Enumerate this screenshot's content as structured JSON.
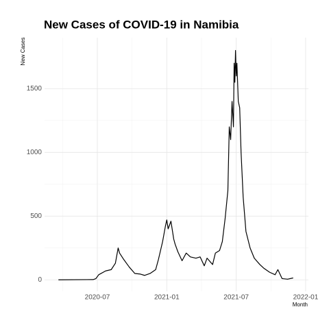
{
  "chart_data": {
    "type": "line",
    "title": "New Cases of COVID-19 in Namibia",
    "y_label": "New Cases",
    "x_label": "Month",
    "x": [
      2020.22,
      2020.47,
      2020.49,
      2020.51,
      2020.56,
      2020.6,
      2020.63,
      2020.65,
      2020.66,
      2020.69,
      2020.73,
      2020.77,
      2020.81,
      2020.84,
      2020.88,
      2020.92,
      2020.94,
      2020.97,
      2020.99,
      2021.0,
      2021.01,
      2021.03,
      2021.05,
      2021.06,
      2021.08,
      2021.11,
      2021.14,
      2021.17,
      2021.21,
      2021.24,
      2021.27,
      2021.29,
      2021.33,
      2021.35,
      2021.38,
      2021.4,
      2021.42,
      2021.44,
      2021.45,
      2021.46,
      2021.47,
      2021.48,
      2021.485,
      2021.49,
      2021.495,
      2021.5,
      2021.505,
      2021.515,
      2021.525,
      2021.535,
      2021.55,
      2021.57,
      2021.6,
      2021.63,
      2021.67,
      2021.7,
      2021.74,
      2021.78,
      2021.8,
      2021.83,
      2021.87,
      2021.91
    ],
    "series": [
      {
        "color": "#000000",
        "values": [
          0,
          2,
          10,
          40,
          70,
          80,
          130,
          250,
          210,
          160,
          100,
          50,
          45,
          35,
          50,
          80,
          160,
          300,
          420,
          470,
          400,
          460,
          320,
          280,
          220,
          150,
          210,
          180,
          170,
          180,
          110,
          170,
          120,
          210,
          230,
          300,
          480,
          700,
          1200,
          1100,
          1400,
          1200,
          1700,
          1550,
          1800,
          1600,
          1700,
          1400,
          1350,
          1000,
          650,
          380,
          250,
          170,
          120,
          90,
          60,
          40,
          80,
          10,
          5,
          15
        ]
      }
    ],
    "xlim": [
      2020.12,
      2022.02
    ],
    "xticks": [
      {
        "value": 2020.5,
        "label": "2020-07"
      },
      {
        "value": 2021.0,
        "label": "2021-01"
      },
      {
        "value": 2021.5,
        "label": "2021-07"
      },
      {
        "value": 2022.0,
        "label": "2022-01"
      }
    ],
    "ylim": [
      -90,
      1900
    ],
    "yticks": [
      0,
      500,
      1000,
      1500
    ],
    "grid": true
  }
}
